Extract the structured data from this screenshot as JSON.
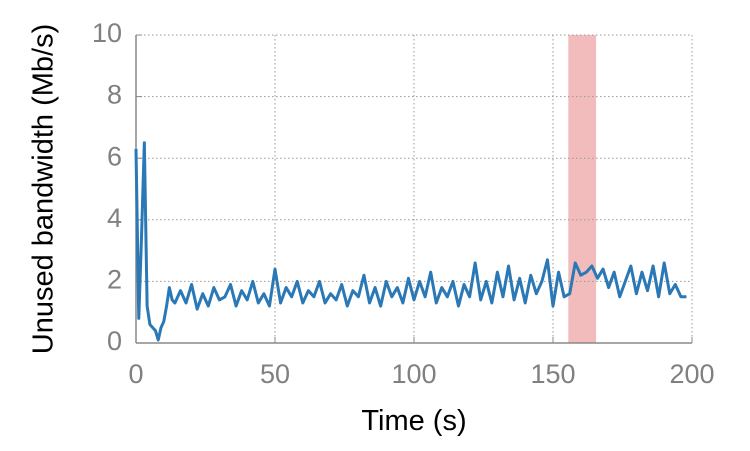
{
  "chart_data": {
    "type": "line",
    "x_label": "Time (s)",
    "y_label": "Unused bandwidth (Mb/s)",
    "x": [
      0,
      1,
      2,
      3,
      4,
      5,
      6,
      7,
      8,
      9,
      10,
      11,
      12,
      13,
      14,
      16,
      18,
      20,
      22,
      24,
      26,
      28,
      30,
      32,
      34,
      36,
      38,
      40,
      42,
      44,
      46,
      48,
      50,
      52,
      54,
      56,
      58,
      60,
      62,
      64,
      66,
      68,
      70,
      72,
      74,
      76,
      78,
      80,
      82,
      84,
      86,
      88,
      90,
      92,
      94,
      96,
      98,
      100,
      102,
      104,
      106,
      108,
      110,
      112,
      114,
      116,
      118,
      120,
      122,
      124,
      126,
      128,
      130,
      132,
      134,
      136,
      138,
      140,
      142,
      144,
      146,
      148,
      150,
      152,
      154,
      156,
      158,
      160,
      162,
      164,
      166,
      168,
      170,
      172,
      174,
      176,
      178,
      180,
      182,
      184,
      186,
      188,
      190,
      192,
      194,
      196,
      198
    ],
    "series": [
      {
        "color": "#2a78b5",
        "values": [
          6.3,
          0.8,
          3.5,
          6.5,
          1.2,
          0.6,
          0.5,
          0.4,
          0.1,
          0.5,
          0.7,
          1.2,
          1.8,
          1.4,
          1.3,
          1.7,
          1.3,
          1.9,
          1.1,
          1.6,
          1.2,
          1.8,
          1.4,
          1.5,
          1.9,
          1.2,
          1.7,
          1.4,
          2.0,
          1.3,
          1.6,
          1.2,
          2.4,
          1.3,
          1.8,
          1.5,
          2.0,
          1.3,
          1.7,
          1.5,
          2.0,
          1.3,
          1.6,
          1.4,
          1.9,
          1.2,
          1.7,
          1.5,
          2.2,
          1.3,
          1.8,
          1.2,
          2.0,
          1.5,
          1.8,
          1.3,
          2.1,
          1.4,
          2.0,
          1.5,
          2.3,
          1.3,
          1.8,
          1.5,
          2.0,
          1.2,
          1.9,
          1.5,
          2.6,
          1.4,
          2.0,
          1.3,
          2.3,
          1.5,
          2.5,
          1.4,
          2.1,
          1.3,
          2.2,
          1.6,
          2.0,
          2.7,
          1.2,
          2.3,
          1.5,
          1.6,
          2.6,
          2.2,
          2.3,
          2.5,
          2.1,
          2.4,
          1.8,
          2.3,
          1.5,
          2.0,
          2.5,
          1.6,
          2.3,
          1.7,
          2.5,
          1.5,
          2.6,
          1.6,
          1.9,
          1.5,
          1.5
        ]
      }
    ],
    "shaded_region": {
      "xlim": [
        155.5,
        165.5
      ],
      "color": "#f2bcbc"
    },
    "xlim": [
      0,
      200
    ],
    "xticks": [
      0,
      50,
      100,
      150,
      200
    ],
    "ylim": [
      0,
      10
    ],
    "yticks": [
      0,
      2,
      4,
      6,
      8,
      10
    ],
    "grid": true
  }
}
